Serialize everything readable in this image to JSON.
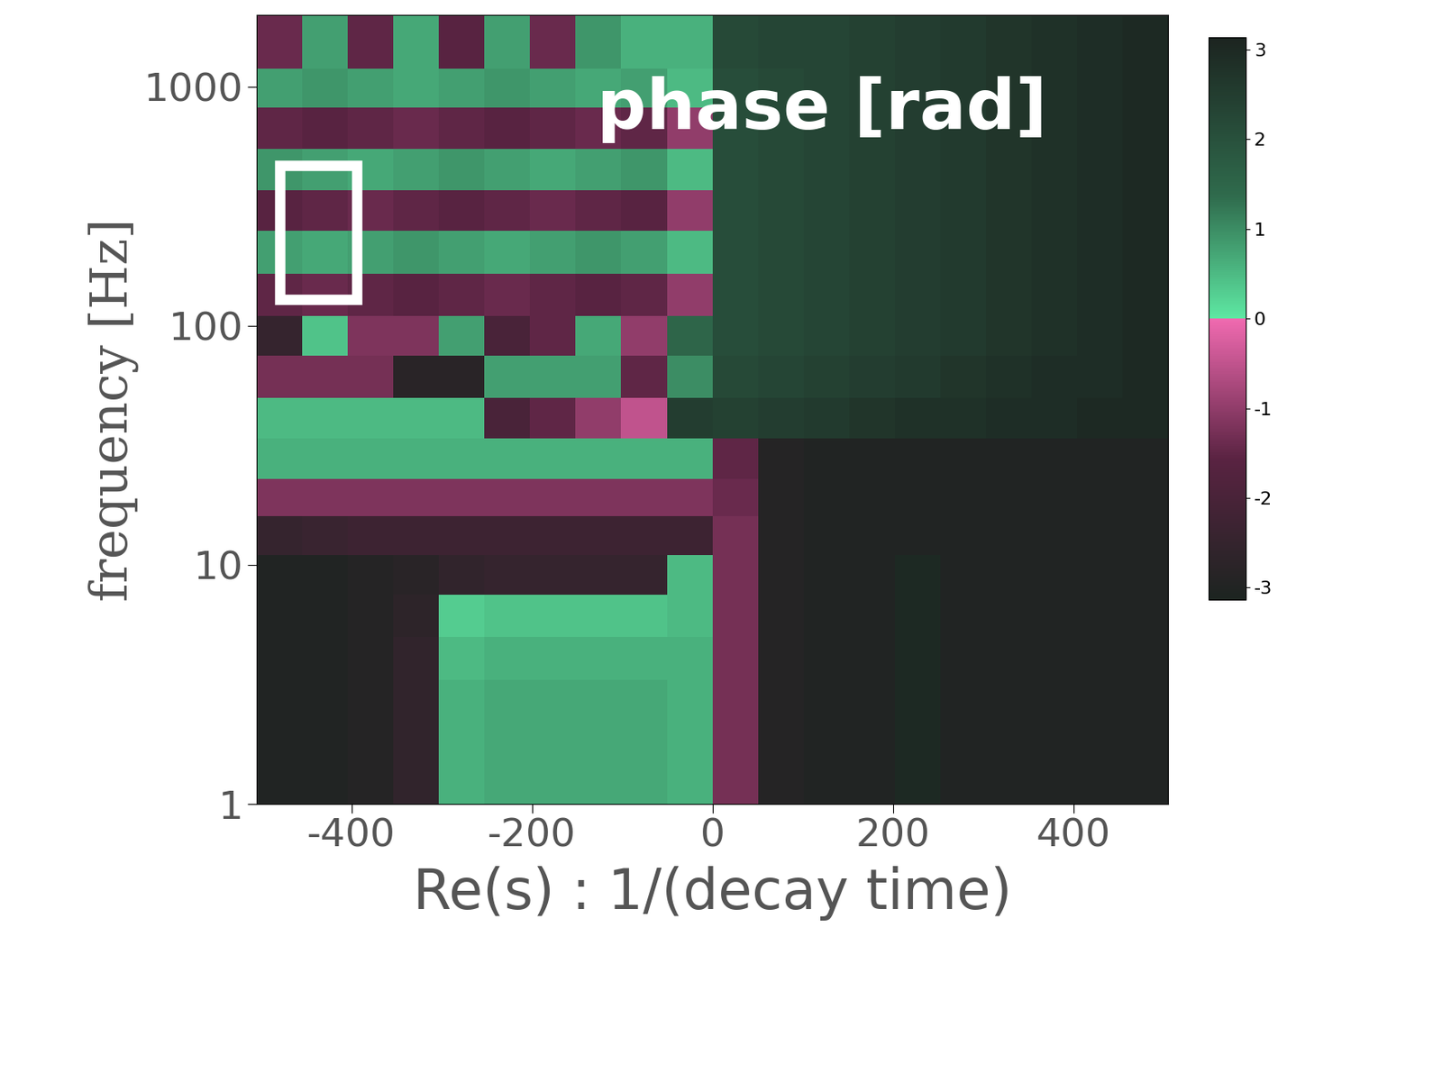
{
  "chart_data": {
    "type": "heatmap",
    "annotation": "phase [rad]",
    "x_label": "Re(s) : 1/(decay time)",
    "y_label": "frequency [Hz]",
    "log": "y",
    "xlim": [
      -505,
      505
    ],
    "ylim": [
      1,
      2000
    ],
    "xticks": [
      -400,
      -200,
      0,
      200,
      400
    ],
    "yticks": [
      1,
      10,
      100,
      1000
    ],
    "x_edges": [
      -505,
      -454.5,
      -404,
      -353.5,
      -303,
      -252.5,
      -202,
      -151.5,
      -101,
      -50.5,
      0,
      50.5,
      101,
      151.5,
      202,
      252.5,
      303,
      353.5,
      404,
      454.5,
      505
    ],
    "y_edges": [
      1,
      1.5,
      2.2,
      3.3,
      5,
      7.5,
      11,
      16,
      23,
      34,
      50,
      75,
      110,
      165,
      250,
      370,
      550,
      820,
      1200,
      2000
    ],
    "cells": [
      [
        -3.0,
        -3.0,
        -2.9,
        -2.6,
        0.6,
        0.7,
        0.7,
        0.7,
        0.7,
        0.6,
        -1.3,
        -2.9,
        -3.0,
        -3.0,
        3.0,
        -3.0,
        -3.0,
        -3.0,
        -3.0,
        -3.0
      ],
      [
        -3.0,
        -3.0,
        -2.9,
        -2.6,
        0.6,
        0.7,
        0.7,
        0.7,
        0.7,
        0.6,
        -1.3,
        -2.9,
        -3.0,
        -3.0,
        3.0,
        -3.0,
        -3.0,
        -3.0,
        -3.0,
        -3.0
      ],
      [
        -3.0,
        -3.0,
        -2.9,
        -2.6,
        0.6,
        0.7,
        0.7,
        0.7,
        0.7,
        0.6,
        -1.3,
        -2.9,
        -3.0,
        -3.0,
        3.0,
        -3.0,
        -3.0,
        -3.0,
        -3.0,
        -3.0
      ],
      [
        -3.0,
        -3.0,
        -2.9,
        -2.6,
        0.5,
        0.6,
        0.6,
        0.6,
        0.6,
        0.6,
        -1.3,
        -2.9,
        -3.0,
        -3.0,
        3.0,
        -3.0,
        -3.0,
        -3.0,
        -3.0,
        -3.0
      ],
      [
        -3.0,
        -3.0,
        -2.9,
        -2.7,
        0.3,
        0.4,
        0.4,
        0.4,
        0.4,
        0.5,
        -1.3,
        -2.9,
        -3.0,
        -3.0,
        3.0,
        -3.0,
        -3.0,
        -3.0,
        -3.0,
        -3.0
      ],
      [
        -3.0,
        -3.0,
        -2.9,
        -2.8,
        -2.6,
        -2.5,
        -2.5,
        -2.5,
        -2.5,
        0.5,
        -1.3,
        -2.9,
        -3.0,
        -3.0,
        3.0,
        -3.0,
        -3.0,
        -3.0,
        -3.0,
        -3.0
      ],
      [
        -2.5,
        -2.4,
        -2.3,
        -2.3,
        -2.3,
        -2.3,
        -2.3,
        -2.3,
        -2.3,
        -2.3,
        -1.3,
        -2.9,
        -3.0,
        -3.0,
        -3.0,
        -3.0,
        -3.0,
        -3.0,
        -3.0,
        -3.0
      ],
      [
        -1.2,
        -1.2,
        -1.2,
        -1.2,
        -1.2,
        -1.2,
        -1.2,
        -1.2,
        -1.2,
        -1.2,
        -1.4,
        -2.9,
        -3.0,
        -3.0,
        -3.0,
        -3.0,
        -3.0,
        -3.0,
        -3.0,
        -3.0
      ],
      [
        0.6,
        0.6,
        0.6,
        0.6,
        0.6,
        0.6,
        0.6,
        0.6,
        0.6,
        0.6,
        -1.5,
        -2.9,
        -3.0,
        -3.0,
        -3.0,
        -3.0,
        -3.0,
        -3.0,
        -3.0,
        -3.0
      ],
      [
        0.5,
        0.5,
        0.5,
        0.5,
        0.5,
        -2.0,
        -1.5,
        -1.0,
        -0.5,
        2.5,
        2.4,
        2.5,
        2.6,
        2.7,
        2.8,
        2.8,
        2.9,
        2.9,
        3.0,
        3.0
      ],
      [
        -1.3,
        -1.3,
        -1.3,
        -2.8,
        -2.8,
        0.8,
        0.8,
        0.8,
        -1.5,
        1.0,
        2.2,
        2.3,
        2.4,
        2.5,
        2.6,
        2.7,
        2.8,
        2.9,
        2.9,
        3.0
      ],
      [
        -2.5,
        0.4,
        -1.2,
        -1.2,
        0.8,
        -2.0,
        -1.5,
        0.7,
        -1.0,
        1.5,
        2.1,
        2.2,
        2.3,
        2.4,
        2.5,
        2.6,
        2.7,
        2.8,
        2.9,
        3.0
      ],
      [
        -1.5,
        -1.4,
        -1.5,
        -1.6,
        -1.5,
        -1.4,
        -1.5,
        -1.6,
        -1.5,
        -1.0,
        2.1,
        2.2,
        2.3,
        2.4,
        2.5,
        2.6,
        2.7,
        2.8,
        2.9,
        3.0
      ],
      [
        0.8,
        0.7,
        0.8,
        0.9,
        0.8,
        0.7,
        0.8,
        0.9,
        0.8,
        0.5,
        2.1,
        2.2,
        2.3,
        2.4,
        2.5,
        2.6,
        2.7,
        2.8,
        2.9,
        3.0
      ],
      [
        -1.6,
        -1.5,
        -1.4,
        -1.5,
        -1.6,
        -1.5,
        -1.4,
        -1.5,
        -1.6,
        -1.0,
        2.1,
        2.2,
        2.3,
        2.4,
        2.5,
        2.6,
        2.7,
        2.8,
        2.9,
        3.0
      ],
      [
        0.9,
        0.8,
        0.7,
        0.8,
        0.9,
        0.8,
        0.7,
        0.8,
        0.9,
        0.5,
        2.1,
        2.2,
        2.3,
        2.4,
        2.5,
        2.6,
        2.7,
        2.8,
        2.9,
        3.0
      ],
      [
        -1.5,
        -1.6,
        -1.5,
        -1.4,
        -1.5,
        -1.6,
        -1.5,
        -1.4,
        -1.5,
        -1.0,
        2.1,
        2.2,
        2.3,
        2.4,
        2.5,
        2.6,
        2.7,
        2.8,
        2.9,
        3.0
      ],
      [
        0.8,
        0.9,
        0.8,
        0.7,
        0.8,
        0.9,
        0.8,
        0.7,
        0.8,
        0.5,
        2.1,
        2.2,
        2.3,
        2.4,
        2.5,
        2.6,
        2.7,
        2.8,
        2.9,
        3.0
      ],
      [
        -1.4,
        0.8,
        -1.5,
        0.7,
        -1.6,
        0.8,
        -1.4,
        0.9,
        0.6,
        0.6,
        2.2,
        2.3,
        2.3,
        2.4,
        2.5,
        2.6,
        2.7,
        2.8,
        2.9,
        3.0
      ]
    ],
    "colorbar": {
      "range": [
        -3.14,
        3.14
      ],
      "ticks": [
        -3,
        -2,
        -1,
        0,
        1,
        2,
        3
      ]
    }
  }
}
